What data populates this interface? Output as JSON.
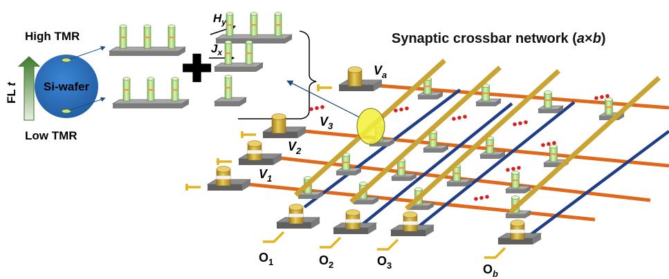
{
  "title": {
    "pre": "Synaptic crossbar network (",
    "a": "a",
    "times": "×",
    "b": "b",
    "post": ")"
  },
  "wafer": {
    "label": "Si-wafer",
    "high_label": "High TMR",
    "low_label": "Low TMR",
    "axis_label_main": "FL",
    "axis_label_var": "t"
  },
  "plus_sign": "✚",
  "fields": {
    "hy_main": "H",
    "hy_sub": "y",
    "jx_main": "J",
    "jx_sub": "x"
  },
  "inputs": [
    {
      "main": "V",
      "sub": "a"
    },
    {
      "main": "V",
      "sub": "3"
    },
    {
      "main": "V",
      "sub": "2"
    },
    {
      "main": "V",
      "sub": "1"
    }
  ],
  "outputs": [
    {
      "main": "O",
      "sub": "1"
    },
    {
      "main": "O",
      "sub": "2"
    },
    {
      "main": "O",
      "sub": "3"
    },
    {
      "main": "O",
      "sub": "b"
    }
  ],
  "colors": {
    "wafer": "#2f74c0",
    "arrow_green": "#4a7c3a",
    "pillar_green": "#b9e08a",
    "pad": "#9a9a9a",
    "pad_dark": "#6d6d6d",
    "gold": "#c8a43a",
    "word_line": "#e0681b",
    "bit_line": "#1f3e86",
    "dots": "#d42020",
    "highlight": "#f2f03a"
  }
}
